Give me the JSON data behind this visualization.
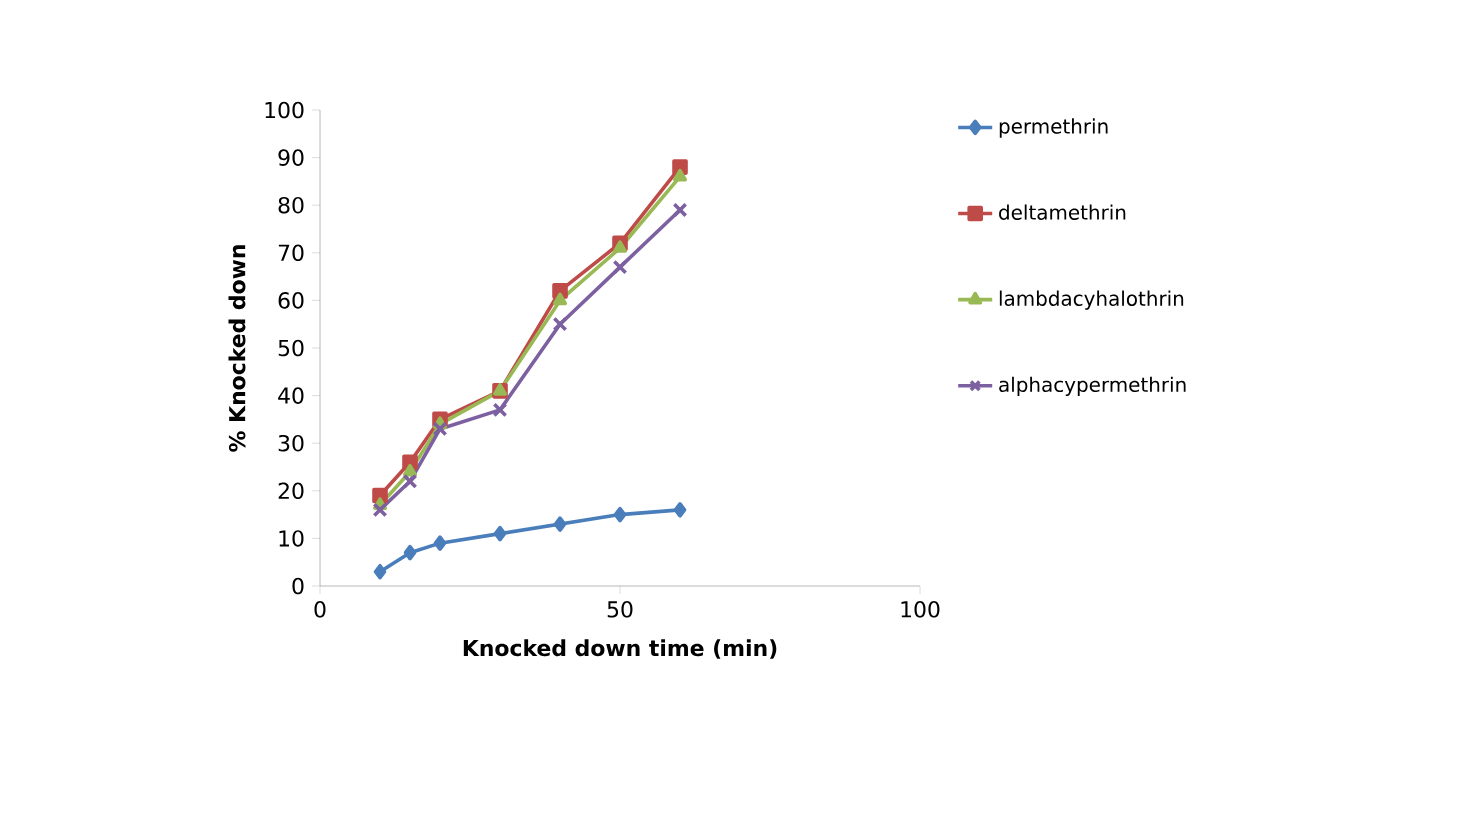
{
  "chart_data": {
    "type": "line",
    "xlabel": "Knocked down time (min)",
    "ylabel": "% Knocked  down",
    "x": [
      10,
      15,
      20,
      30,
      40,
      50,
      60
    ],
    "series": [
      {
        "name": "permethrin",
        "color": "#4a7ebb",
        "marker": "diamond",
        "values": [
          3,
          7,
          9,
          11,
          13,
          15,
          16
        ]
      },
      {
        "name": "deltamethrin",
        "color": "#be4b48",
        "marker": "square",
        "values": [
          19,
          26,
          35,
          41,
          62,
          72,
          88
        ]
      },
      {
        "name": "lambdacyhalothrin",
        "color": "#98b954",
        "marker": "triangle",
        "values": [
          17,
          24,
          34,
          41,
          60,
          71,
          86
        ]
      },
      {
        "name": "alphacypermethrin",
        "color": "#7d60a0",
        "marker": "cross",
        "values": [
          16,
          22,
          33,
          37,
          55,
          67,
          79
        ]
      }
    ],
    "xlim": [
      0,
      100
    ],
    "xticks": [
      0,
      50,
      100
    ],
    "ylim": [
      0,
      100
    ],
    "yticks": [
      0,
      10,
      20,
      30,
      40,
      50,
      60,
      70,
      80,
      90,
      100
    ],
    "grid": false,
    "legend": "right"
  }
}
